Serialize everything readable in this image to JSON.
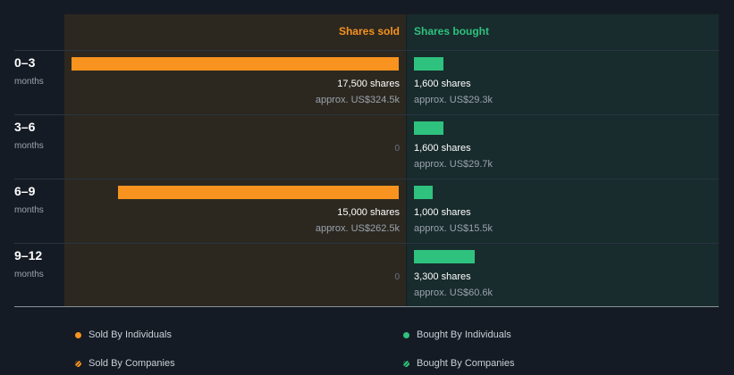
{
  "headers": {
    "sold": "Shares sold",
    "bought": "Shares bought"
  },
  "colors": {
    "sold": "#f7931e",
    "bought": "#2ec27e"
  },
  "chart_data": {
    "type": "bar",
    "categories": [
      "0–3",
      "3–6",
      "6–9",
      "9–12"
    ],
    "category_unit": "months",
    "series": [
      {
        "name": "Shares sold",
        "values": [
          17500,
          0,
          15000,
          0
        ],
        "share_labels": [
          "17,500 shares",
          "0",
          "15,000 shares",
          "0"
        ],
        "approx_labels": [
          "approx. US$324.5k",
          "",
          "approx. US$262.5k",
          ""
        ]
      },
      {
        "name": "Shares bought",
        "values": [
          1600,
          1600,
          1000,
          3300
        ],
        "share_labels": [
          "1,600 shares",
          "1,600 shares",
          "1,000 shares",
          "3,300 shares"
        ],
        "approx_labels": [
          "approx. US$29.3k",
          "approx. US$29.7k",
          "approx. US$15.5k",
          "approx. US$60.6k"
        ]
      }
    ]
  },
  "legend": [
    {
      "label": "Sold By Individuals",
      "icon": "dot-icon"
    },
    {
      "label": "Bought By Individuals",
      "icon": "dot-icon"
    },
    {
      "label": "Sold By Companies",
      "icon": "hatch-dot-icon"
    },
    {
      "label": "Bought By Companies",
      "icon": "hatch-dot-icon"
    }
  ]
}
